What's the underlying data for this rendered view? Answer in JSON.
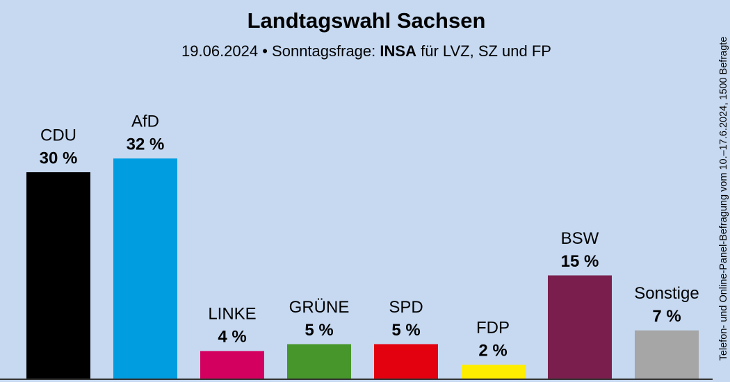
{
  "chart_data": {
    "type": "bar",
    "title": "Landtagswahl Sachsen",
    "subtitle": [
      "19.06.2024 • Sonntagsfrage:",
      "INSA",
      "für LVZ, SZ und FP"
    ],
    "note": "Telefon- und Online-Panel-Befragung vom 10.–17.6.2024, 1500 Befragte",
    "categories": [
      "CDU",
      "AfD",
      "LINKE",
      "GRÜNE",
      "SPD",
      "FDP",
      "BSW",
      "Sonstige"
    ],
    "values": [
      30,
      32,
      4,
      5,
      5,
      2,
      15,
      7
    ],
    "value_labels": [
      "30 %",
      "32 %",
      "4 %",
      "5 %",
      "5 %",
      "2 %",
      "15 %",
      "7 %"
    ],
    "colors": [
      "#000000",
      "#009ee0",
      "#d4005f",
      "#46962b",
      "#e3000f",
      "#ffed00",
      "#7a1f4d",
      "#a6a6a6"
    ]
  }
}
